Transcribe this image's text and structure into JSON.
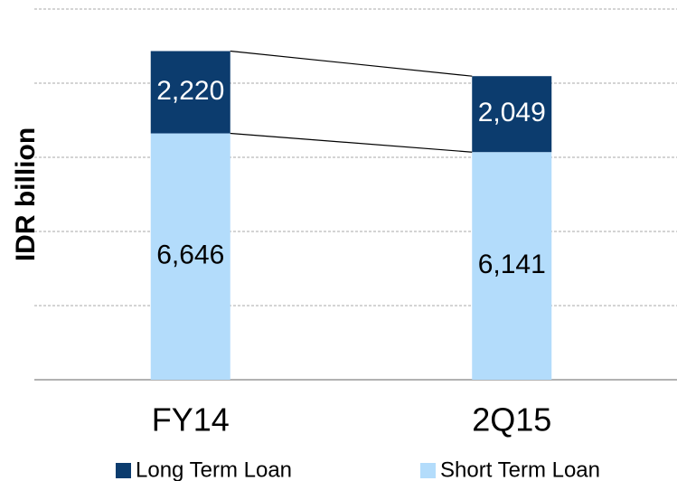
{
  "chart_data": {
    "type": "stacked_bar",
    "y_label": "IDR billion",
    "categories": [
      "FY14",
      "2Q15"
    ],
    "series": [
      {
        "name": "Short Term Loan",
        "color": "#b3dcfb",
        "label_color": "#000000",
        "values": [
          6646,
          6141
        ],
        "value_labels": [
          "6,646",
          "6,141"
        ]
      },
      {
        "name": "Long Term Loan",
        "color": "#0c3c6e",
        "label_color": "#ffffff",
        "values": [
          2220,
          2049
        ],
        "value_labels": [
          "2,220",
          "2,049"
        ]
      }
    ],
    "legend_order": [
      1,
      0
    ],
    "ylim": [
      0,
      10000
    ],
    "yticks": [
      0,
      2000,
      4000,
      6000,
      8000,
      10000
    ],
    "grid": true
  }
}
